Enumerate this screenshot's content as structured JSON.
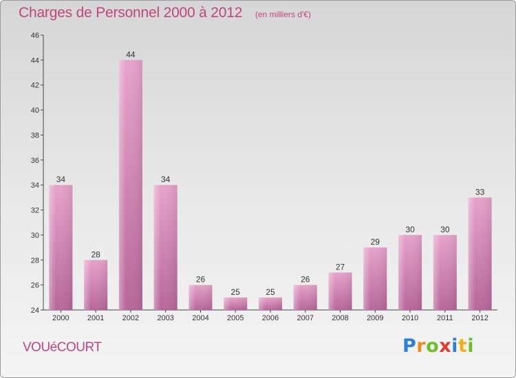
{
  "title": "Charges de Personnel 2000 à 2012",
  "subtitle": "(en milliers d'€)",
  "commune": "VOUéCOURT",
  "logo": {
    "letters": [
      "P",
      "r",
      "o",
      "x",
      "i",
      "t",
      "i"
    ],
    "colors": [
      "#2d7fd3",
      "#f08a1c",
      "#6cbf2a",
      "#e23b2e",
      "#2d7fd3",
      "#f0b01c",
      "#6cbf2a"
    ]
  },
  "colors": {
    "bar": "#d680b2",
    "bar_dark": "#b45f91",
    "accent": "#c0457f"
  },
  "chart_data": {
    "type": "bar",
    "categories": [
      "2000",
      "2001",
      "2002",
      "2003",
      "2004",
      "2005",
      "2006",
      "2007",
      "2008",
      "2009",
      "2010",
      "2011",
      "2012"
    ],
    "values": [
      34,
      28,
      44,
      34,
      26,
      25,
      25,
      26,
      27,
      29,
      30,
      30,
      33
    ],
    "ylim": [
      24,
      46
    ],
    "yticks": [
      24,
      26,
      28,
      30,
      32,
      34,
      36,
      38,
      40,
      42,
      44,
      46
    ],
    "grid": false,
    "data_labels": true
  }
}
